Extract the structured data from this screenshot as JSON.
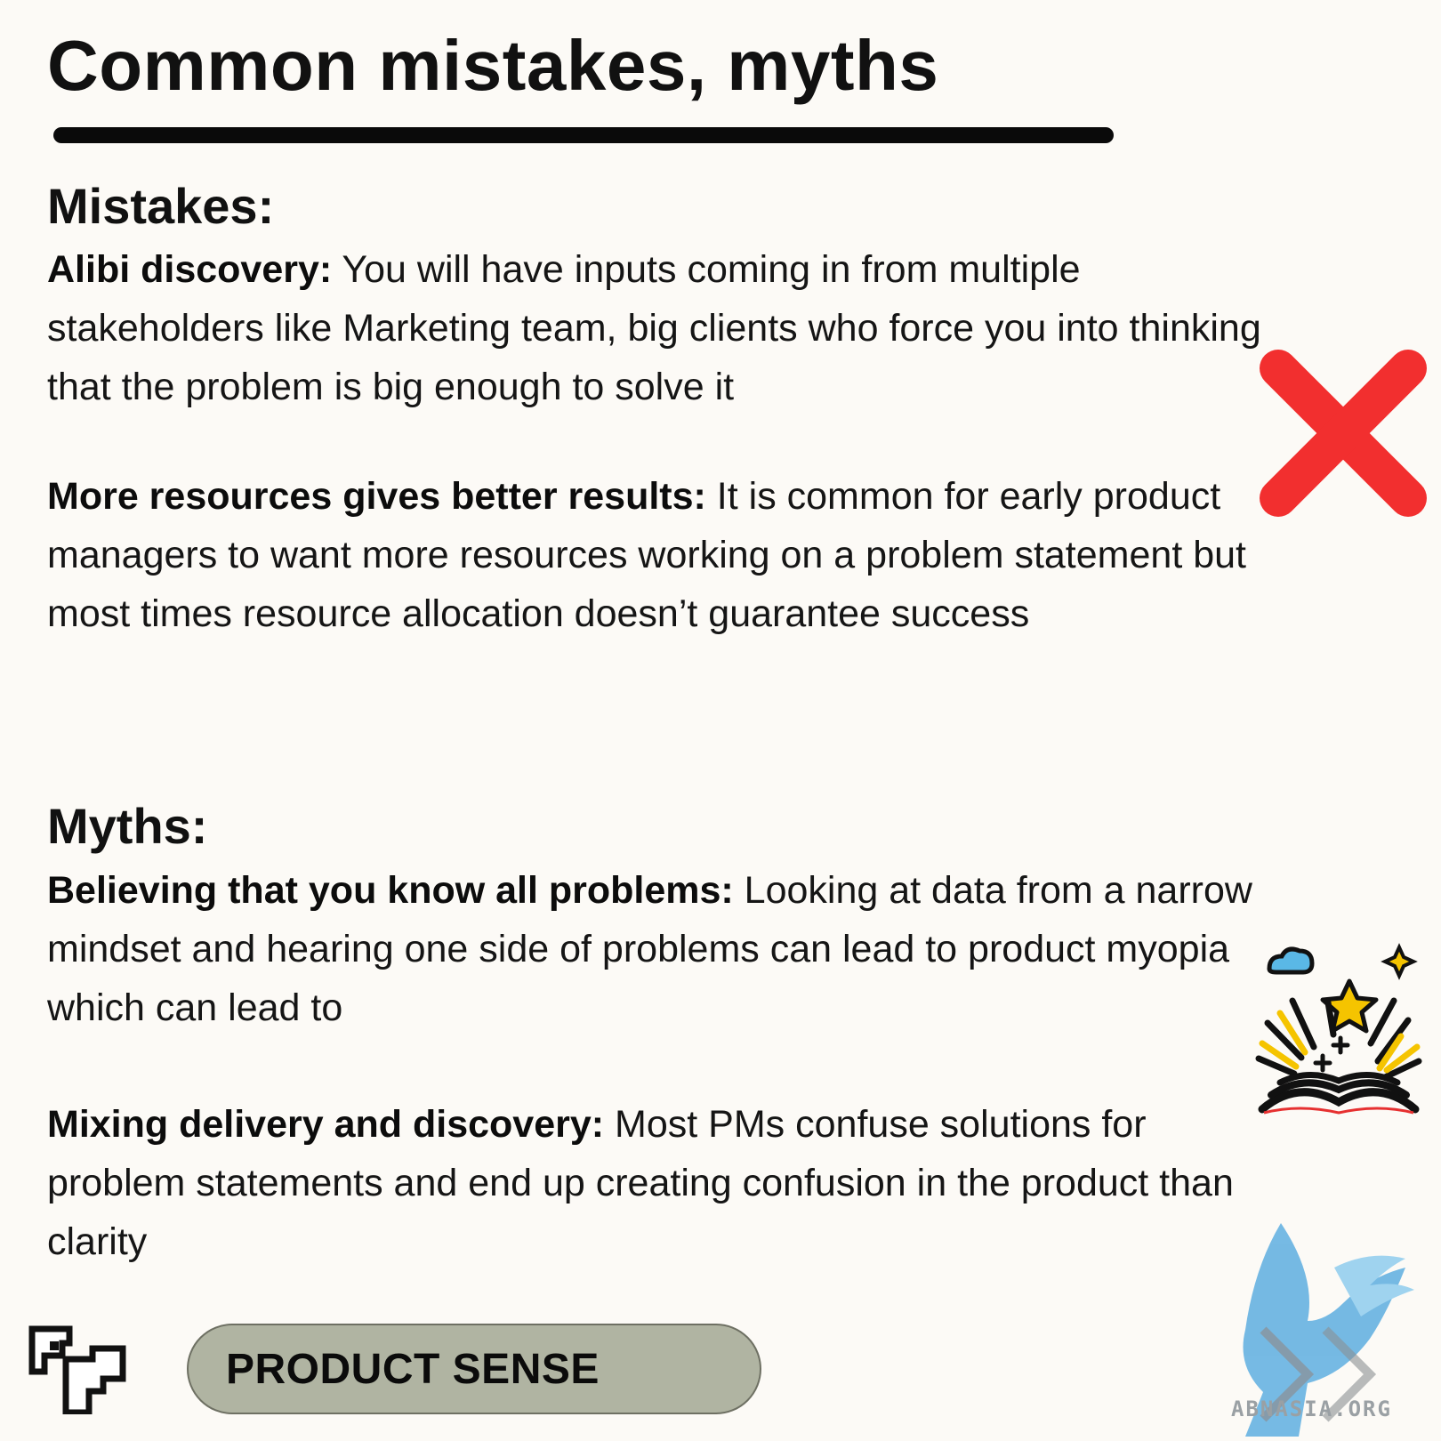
{
  "page": {
    "title": "Common mistakes, myths"
  },
  "mistakes": {
    "heading": "Mistakes:",
    "items": [
      {
        "term": "Alibi discovery:",
        "text": " You will have inputs coming in from multiple stakeholders like Marketing team, big clients who force you into thinking that the problem is big enough to solve it"
      },
      {
        "term": "More resources gives better results:",
        "text": " It is common for early product managers to want more resources working on a problem statement but most times resource allocation doesn’t guarantee success"
      }
    ]
  },
  "myths": {
    "heading": "Myths:",
    "items": [
      {
        "term": "Believing that you know all problems:",
        "text": " Looking at data from a narrow mindset and hearing one side of problems can lead to product myopia which can lead to"
      },
      {
        "term": "Mixing delivery and discovery:",
        "text": " Most PMs confuse solutions for problem statements and end up creating confusion in the product than clarity"
      }
    ]
  },
  "footer": {
    "tag_label": "PRODUCT SENSE",
    "watermark": "ABNASIA.ORG"
  },
  "icons": {
    "cross": "red-cross-icon",
    "book": "magic-book-icon",
    "logo": "product-sense-logo",
    "watermark": "griffin-watermark"
  },
  "colors": {
    "background": "#fcfaf6",
    "cross": "#f22f2f",
    "pill": "#b0b4a2",
    "watermark": "#5eaee0"
  }
}
